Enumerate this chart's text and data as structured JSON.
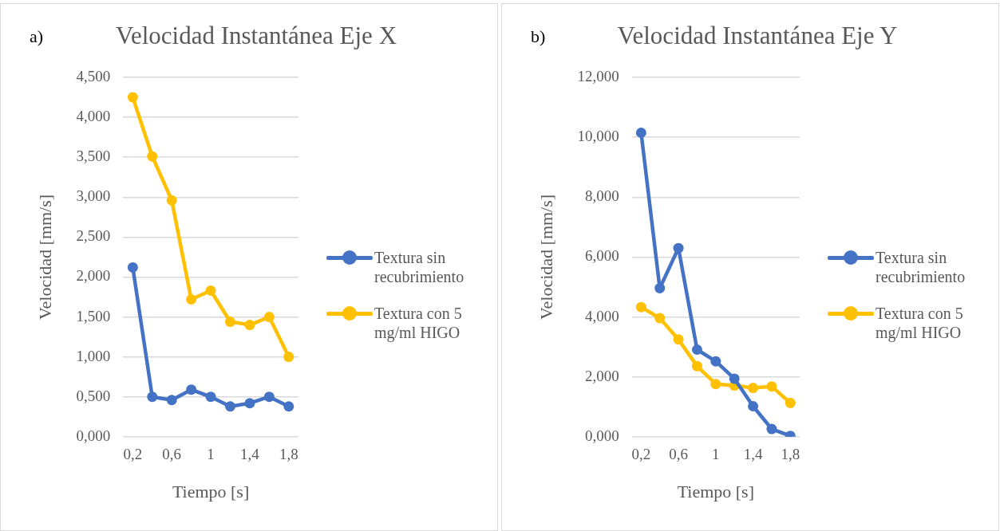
{
  "chart_data": [
    {
      "type": "line",
      "title": "Velocidad Instantánea Eje X",
      "xlabel": "Tiempo [s]",
      "ylabel": "Velocidad [mm/s]",
      "annotations": [
        "a)"
      ],
      "categories": [
        "0,2",
        null,
        "0,6",
        null,
        "1",
        null,
        "1,4",
        null,
        "1,8"
      ],
      "series": [
        {
          "name": "Textura sin recubrimiento",
          "color": "#4472c4",
          "values": [
            2.12,
            0.5,
            0.46,
            0.59,
            0.5,
            0.38,
            0.42,
            0.5,
            0.38
          ]
        },
        {
          "name": "Textura con 5 mg/ml HIGO",
          "color": "#ffc000",
          "values": [
            4.25,
            3.51,
            2.96,
            1.72,
            1.83,
            1.44,
            1.4,
            1.5,
            1.0
          ]
        }
      ],
      "ylim": [
        0,
        4.5
      ],
      "yticks": [
        {
          "value": 0,
          "label": "0,000"
        },
        {
          "value": 0.5,
          "label": "0,500"
        },
        {
          "value": 1,
          "label": "1,000"
        },
        {
          "value": 1.5,
          "label": "1,500"
        },
        {
          "value": 2,
          "label": "2,000"
        },
        {
          "value": 2.5,
          "label": "2,500"
        },
        {
          "value": 3,
          "label": "3,000"
        },
        {
          "value": 3.5,
          "label": "3,500"
        },
        {
          "value": 4,
          "label": "4,000"
        },
        {
          "value": 4.5,
          "label": "4,500"
        }
      ],
      "grid": "y",
      "legend": "right",
      "marker": "circle",
      "line_style": "solid"
    },
    {
      "type": "line",
      "title": "Velocidad Instantánea Eje Y",
      "xlabel": "Tiempo [s]",
      "ylabel": "Velocidad [mm/s]",
      "annotations": [
        "b)"
      ],
      "categories": [
        "0,2",
        null,
        "0,6",
        null,
        "1",
        null,
        "1,4",
        null,
        "1,8"
      ],
      "series": [
        {
          "name": "Textura sin recubrimiento",
          "color": "#4472c4",
          "values": [
            10.15,
            4.96,
            6.3,
            2.91,
            2.52,
            1.94,
            1.02,
            0.26,
            0.03
          ]
        },
        {
          "name": "Textura con 5 mg/ml HIGO",
          "color": "#ffc000",
          "values": [
            4.33,
            3.96,
            3.25,
            2.36,
            1.76,
            1.71,
            1.63,
            1.68,
            1.13
          ]
        }
      ],
      "ylim": [
        0,
        12
      ],
      "yticks": [
        {
          "value": 0,
          "label": "0,000"
        },
        {
          "value": 2,
          "label": "2,000"
        },
        {
          "value": 4,
          "label": "4,000"
        },
        {
          "value": 6,
          "label": "6,000"
        },
        {
          "value": 8,
          "label": "8,000"
        },
        {
          "value": 10,
          "label": "10,000"
        },
        {
          "value": 12,
          "label": "12,000"
        }
      ],
      "grid": "y",
      "legend": "right",
      "marker": "circle",
      "line_style": "solid"
    }
  ]
}
